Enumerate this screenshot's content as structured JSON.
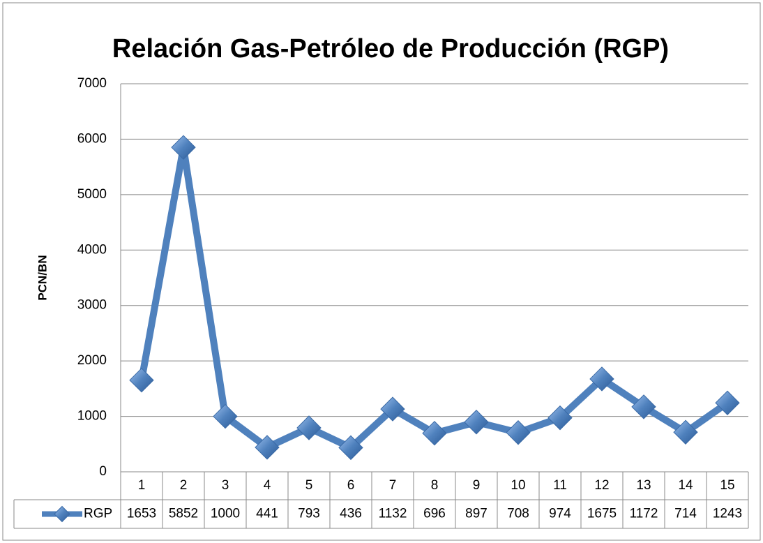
{
  "chart_data": {
    "type": "line",
    "title": "Relación Gas-Petróleo de Producción (RGP)",
    "y_label": "PCN/BN",
    "categories": [
      "1",
      "2",
      "3",
      "4",
      "5",
      "6",
      "7",
      "8",
      "9",
      "10",
      "11",
      "12",
      "13",
      "14",
      "15"
    ],
    "series": [
      {
        "name": "RGP",
        "color": "#4f81bd",
        "values": [
          1653,
          5852,
          1000,
          441,
          793,
          436,
          1132,
          696,
          897,
          708,
          974,
          1675,
          1172,
          714,
          1243
        ]
      }
    ],
    "ylim": [
      0,
      7000
    ],
    "yticks": [
      0,
      1000,
      2000,
      3000,
      4000,
      5000,
      6000,
      7000
    ],
    "grid": true,
    "data_table": true
  }
}
